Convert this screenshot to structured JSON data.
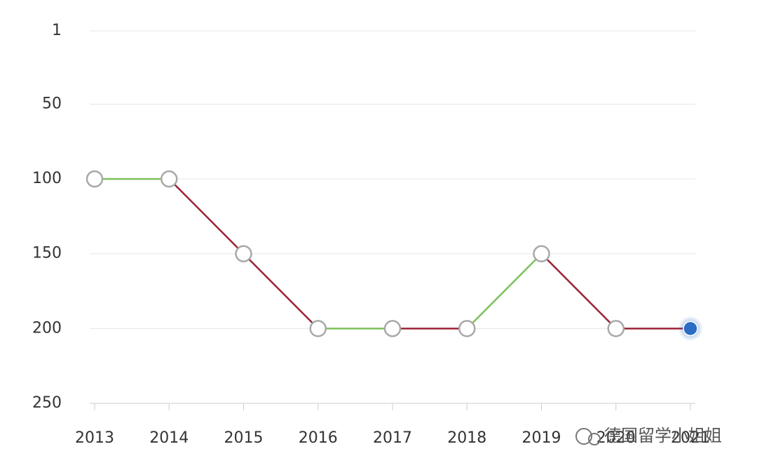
{
  "chart_data": {
    "type": "line",
    "categories": [
      "2013",
      "2014",
      "2015",
      "2016",
      "2017",
      "2018",
      "2019",
      "2020",
      "2021"
    ],
    "values": [
      100,
      100,
      150,
      200,
      200,
      200,
      150,
      200,
      200
    ],
    "segment_colors": [
      "#7cc15b",
      "#9b2335",
      "#9b2335",
      "#7cc15b",
      "#9b2335",
      "#7cc15b",
      "#9b2335",
      "#9b2335"
    ],
    "marker_color": "#ffffff",
    "marker_stroke": "#a8a8a8",
    "last_marker_color": "#2b6cc4",
    "ylim": [
      1,
      250
    ],
    "yticks": [
      1,
      50,
      100,
      150,
      200,
      250
    ],
    "y_inverted": true,
    "grid": true
  },
  "watermark": "德国留学小姐姐"
}
